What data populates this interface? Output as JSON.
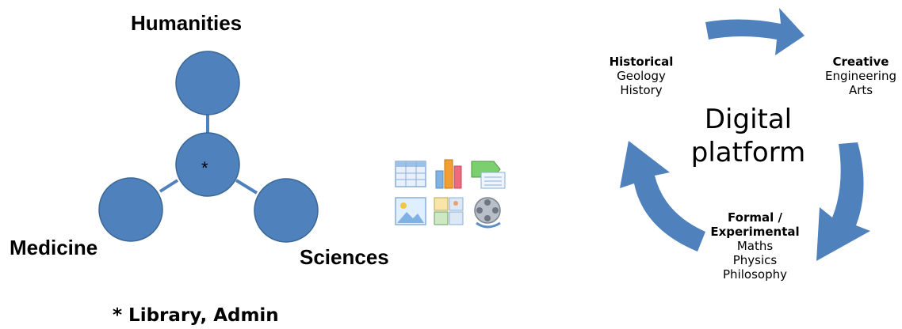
{
  "left_diagram": {
    "nodes": {
      "top": "Humanities",
      "left": "Medicine",
      "right": "Sciences",
      "center_mark": "*"
    },
    "footnote": "* Library, Admin",
    "node_color": "#4f81bd"
  },
  "center_icons": [
    "table-icon",
    "bar-chart-icon",
    "smartart-icon",
    "picture-icon",
    "clipart-icon",
    "media-icon"
  ],
  "right_diagram": {
    "center_text": [
      "Digital",
      "platform"
    ],
    "historical": {
      "title": "Historical",
      "items": [
        "Geology",
        "History"
      ]
    },
    "creative": {
      "title": "Creative",
      "items": [
        "Engineering",
        "Arts"
      ]
    },
    "formal": {
      "title_lines": [
        "Formal /",
        "Experimental"
      ],
      "items": [
        "Maths",
        "Physics",
        "Philosophy"
      ]
    },
    "arrow_color": "#4f81bd"
  }
}
